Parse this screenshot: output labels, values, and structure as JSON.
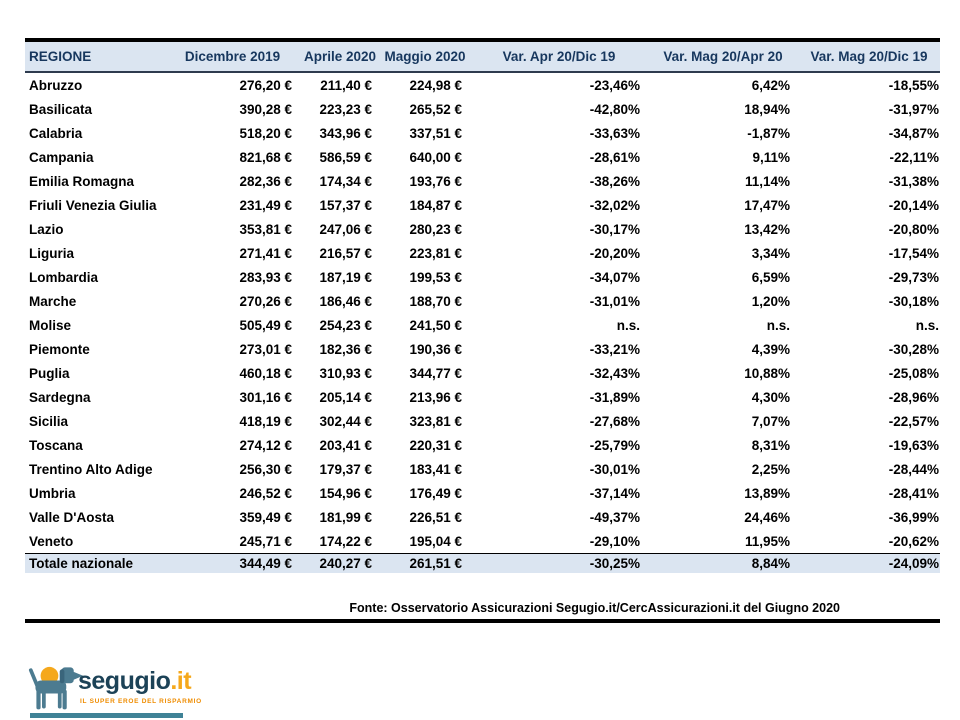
{
  "table": {
    "header": [
      "REGIONE",
      "Dicembre 2019",
      "Aprile 2020",
      "Maggio 2020",
      "Var. Apr 20/Dic 19",
      "Var. Mag 20/Apr 20",
      "Var. Mag 20/Dic 19"
    ],
    "rows": [
      [
        "Abruzzo",
        "276,20 €",
        "211,40 €",
        "224,98 €",
        "-23,46%",
        "6,42%",
        "-18,55%"
      ],
      [
        "Basilicata",
        "390,28 €",
        "223,23 €",
        "265,52 €",
        "-42,80%",
        "18,94%",
        "-31,97%"
      ],
      [
        "Calabria",
        "518,20 €",
        "343,96 €",
        "337,51 €",
        "-33,63%",
        "-1,87%",
        "-34,87%"
      ],
      [
        "Campania",
        "821,68 €",
        "586,59 €",
        "640,00 €",
        "-28,61%",
        "9,11%",
        "-22,11%"
      ],
      [
        "Emilia Romagna",
        "282,36 €",
        "174,34 €",
        "193,76 €",
        "-38,26%",
        "11,14%",
        "-31,38%"
      ],
      [
        "Friuli Venezia Giulia",
        "231,49 €",
        "157,37 €",
        "184,87 €",
        "-32,02%",
        "17,47%",
        "-20,14%"
      ],
      [
        "Lazio",
        "353,81 €",
        "247,06 €",
        "280,23 €",
        "-30,17%",
        "13,42%",
        "-20,80%"
      ],
      [
        "Liguria",
        "271,41 €",
        "216,57 €",
        "223,81 €",
        "-20,20%",
        "3,34%",
        "-17,54%"
      ],
      [
        "Lombardia",
        "283,93 €",
        "187,19 €",
        "199,53 €",
        "-34,07%",
        "6,59%",
        "-29,73%"
      ],
      [
        "Marche",
        "270,26 €",
        "186,46 €",
        "188,70 €",
        "-31,01%",
        "1,20%",
        "-30,18%"
      ],
      [
        "Molise",
        "505,49 €",
        "254,23 €",
        "241,50 €",
        "n.s.",
        "n.s.",
        "n.s."
      ],
      [
        "Piemonte",
        "273,01 €",
        "182,36 €",
        "190,36 €",
        "-33,21%",
        "4,39%",
        "-30,28%"
      ],
      [
        "Puglia",
        "460,18 €",
        "310,93 €",
        "344,77 €",
        "-32,43%",
        "10,88%",
        "-25,08%"
      ],
      [
        "Sardegna",
        "301,16 €",
        "205,14 €",
        "213,96 €",
        "-31,89%",
        "4,30%",
        "-28,96%"
      ],
      [
        "Sicilia",
        "418,19 €",
        "302,44 €",
        "323,81 €",
        "-27,68%",
        "7,07%",
        "-22,57%"
      ],
      [
        "Toscana",
        "274,12 €",
        "203,41 €",
        "220,31 €",
        "-25,79%",
        "8,31%",
        "-19,63%"
      ],
      [
        "Trentino Alto Adige",
        "256,30 €",
        "179,37 €",
        "183,41 €",
        "-30,01%",
        "2,25%",
        "-28,44%"
      ],
      [
        "Umbria",
        "246,52 €",
        "154,96 €",
        "176,49 €",
        "-37,14%",
        "13,89%",
        "-28,41%"
      ],
      [
        "Valle D'Aosta",
        "359,49 €",
        "181,99 €",
        "226,51 €",
        "-49,37%",
        "24,46%",
        "-36,99%"
      ],
      [
        "Veneto",
        "245,71 €",
        "174,22 €",
        "195,04 €",
        "-29,10%",
        "11,95%",
        "-20,62%"
      ]
    ],
    "total_row": [
      "Totale nazionale",
      "344,49 €",
      "240,27 €",
      "261,51 €",
      "-30,25%",
      "8,84%",
      "-24,09%"
    ]
  },
  "source_note": "Fonte: Osservatorio Assicurazioni Segugio.it/CercAssicurazioni.it del Giugno 2020",
  "logo": {
    "brand": "segugio",
    "tld": ".it",
    "tagline": "IL SUPER EROE DEL RISPARMIO",
    "icon": "dog-with-sun-icon"
  },
  "colors": {
    "header_bg": "#dbe5f1",
    "header_text": "#17375e",
    "total_row_bg": "#dbe5f1",
    "border_black": "#000000",
    "brand_navy": "#1c4257",
    "brand_orange": "#f5a81c",
    "logo_dog_blue": "#4c7b90",
    "logo_bar_teal": "#3f8296"
  }
}
